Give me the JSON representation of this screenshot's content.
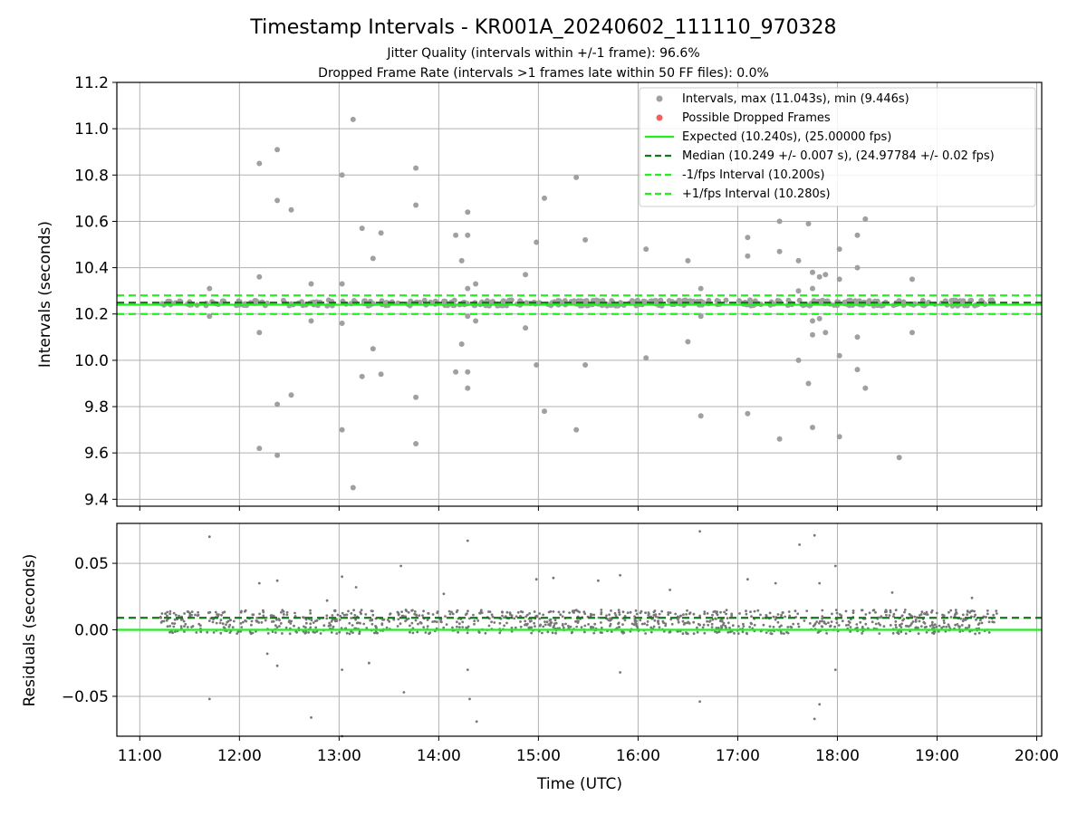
{
  "title": "Timestamp Intervals - KR001A_20240602_111110_970328",
  "subtitle_1": "Jitter Quality (intervals within +/-1 frame): 96.6%",
  "subtitle_2": "Dropped Frame Rate (intervals >1 frames late within 50 FF files): 0.0%",
  "colors": {
    "intervals": "#a0a0a0",
    "residuals": "#777777",
    "dropped": "#f06060",
    "expected": "#22ee22",
    "median": "#117711",
    "fps_bounds": "#22ee22",
    "grid": "#b0b0b0"
  },
  "chart_data": [
    {
      "type": "scatter",
      "panel": "top",
      "ylabel": "Intervals (seconds)",
      "ylim": [
        9.37,
        11.2
      ],
      "yticks": [
        "9.4",
        "9.6",
        "9.8",
        "10.0",
        "10.2",
        "10.4",
        "10.6",
        "10.8",
        "11.0",
        "11.2"
      ],
      "ytick_values": [
        9.4,
        9.6,
        9.8,
        10.0,
        10.2,
        10.4,
        10.6,
        10.8,
        11.0,
        11.2
      ],
      "xlim_hours": [
        10.77,
        20.05
      ],
      "grid": true,
      "legend_position": "top-right",
      "legend": [
        "Intervals, max (11.043s), min (9.446s)",
        "Possible Dropped Frames",
        "Expected (10.240s), (25.00000 fps)",
        "Median (10.249 +/- 0.007 s), (24.97784 +/- 0.02 fps)",
        "-1/fps Interval (10.200s)",
        "+1/fps Interval (10.280s)"
      ],
      "reference_lines": {
        "expected": 10.24,
        "median": 10.249,
        "minus_one_fps": 10.2,
        "plus_one_fps": 10.28
      },
      "time_span_hours": [
        11.2,
        19.6
      ],
      "typical_band": [
        10.235,
        10.26
      ],
      "outliers": [
        [
          11.7,
          10.31
        ],
        [
          11.7,
          10.19
        ],
        [
          12.2,
          10.85
        ],
        [
          12.2,
          10.36
        ],
        [
          12.2,
          10.12
        ],
        [
          12.2,
          9.62
        ],
        [
          12.38,
          10.91
        ],
        [
          12.38,
          10.69
        ],
        [
          12.38,
          9.81
        ],
        [
          12.38,
          9.59
        ],
        [
          12.52,
          10.65
        ],
        [
          12.52,
          9.85
        ],
        [
          12.72,
          10.33
        ],
        [
          12.72,
          10.17
        ],
        [
          13.03,
          10.8
        ],
        [
          13.03,
          10.33
        ],
        [
          13.03,
          10.16
        ],
        [
          13.03,
          9.7
        ],
        [
          13.14,
          11.04
        ],
        [
          13.14,
          9.45
        ],
        [
          13.23,
          10.57
        ],
        [
          13.23,
          9.93
        ],
        [
          13.34,
          10.44
        ],
        [
          13.34,
          10.05
        ],
        [
          13.42,
          10.55
        ],
        [
          13.42,
          9.94
        ],
        [
          13.77,
          10.83
        ],
        [
          13.77,
          10.67
        ],
        [
          13.77,
          9.84
        ],
        [
          13.77,
          9.64
        ],
        [
          14.17,
          10.54
        ],
        [
          14.17,
          9.95
        ],
        [
          14.23,
          10.43
        ],
        [
          14.23,
          10.07
        ],
        [
          14.29,
          10.64
        ],
        [
          14.29,
          10.54
        ],
        [
          14.29,
          10.31
        ],
        [
          14.29,
          10.19
        ],
        [
          14.29,
          9.95
        ],
        [
          14.29,
          9.88
        ],
        [
          14.37,
          10.33
        ],
        [
          14.37,
          10.17
        ],
        [
          14.87,
          10.37
        ],
        [
          14.87,
          10.14
        ],
        [
          14.98,
          10.51
        ],
        [
          14.98,
          9.98
        ],
        [
          15.06,
          10.7
        ],
        [
          15.06,
          9.78
        ],
        [
          15.38,
          10.79
        ],
        [
          15.38,
          9.7
        ],
        [
          15.47,
          10.52
        ],
        [
          15.47,
          9.98
        ],
        [
          16.08,
          10.48
        ],
        [
          16.08,
          10.01
        ],
        [
          16.5,
          10.43
        ],
        [
          16.5,
          10.08
        ],
        [
          16.63,
          10.31
        ],
        [
          16.63,
          10.19
        ],
        [
          16.63,
          9.76
        ],
        [
          17.1,
          10.53
        ],
        [
          17.1,
          10.45
        ],
        [
          17.1,
          9.77
        ],
        [
          17.42,
          10.6
        ],
        [
          17.42,
          10.47
        ],
        [
          17.42,
          9.66
        ],
        [
          17.61,
          10.43
        ],
        [
          17.61,
          10.3
        ],
        [
          17.61,
          10.0
        ],
        [
          17.71,
          10.59
        ],
        [
          17.71,
          9.9
        ],
        [
          17.75,
          10.38
        ],
        [
          17.75,
          10.31
        ],
        [
          17.75,
          10.17
        ],
        [
          17.75,
          10.11
        ],
        [
          17.75,
          9.71
        ],
        [
          17.82,
          10.36
        ],
        [
          17.82,
          10.18
        ],
        [
          17.88,
          10.37
        ],
        [
          17.88,
          10.12
        ],
        [
          18.02,
          10.48
        ],
        [
          18.02,
          10.35
        ],
        [
          18.02,
          10.02
        ],
        [
          18.02,
          9.67
        ],
        [
          18.2,
          10.54
        ],
        [
          18.2,
          10.4
        ],
        [
          18.2,
          10.1
        ],
        [
          18.2,
          9.96
        ],
        [
          18.28,
          10.61
        ],
        [
          18.28,
          9.88
        ],
        [
          18.62,
          9.58
        ],
        [
          18.75,
          10.35
        ],
        [
          18.75,
          10.12
        ]
      ]
    },
    {
      "type": "scatter",
      "panel": "bottom",
      "xlabel": "Time (UTC)",
      "ylabel": "Residuals (seconds)",
      "ylim": [
        -0.08,
        0.08
      ],
      "yticks": [
        "0.05",
        "0.00",
        "−0.05"
      ],
      "ytick_values": [
        0.05,
        0.0,
        -0.05
      ],
      "xticks": [
        "11:00",
        "12:00",
        "13:00",
        "14:00",
        "15:00",
        "16:00",
        "17:00",
        "18:00",
        "19:00",
        "20:00"
      ],
      "xtick_values": [
        11,
        12,
        13,
        14,
        15,
        16,
        17,
        18,
        19,
        20
      ],
      "xlim_hours": [
        10.77,
        20.05
      ],
      "grid": true,
      "reference_lines": {
        "expected": 0.0,
        "median": 0.009
      },
      "time_span_hours": [
        11.2,
        19.6
      ],
      "typical_band": [
        -0.003,
        0.015
      ],
      "outliers": [
        [
          11.7,
          0.07
        ],
        [
          11.7,
          -0.052
        ],
        [
          12.2,
          0.035
        ],
        [
          12.28,
          -0.018
        ],
        [
          12.38,
          0.037
        ],
        [
          12.38,
          -0.027
        ],
        [
          12.72,
          -0.066
        ],
        [
          12.88,
          0.022
        ],
        [
          13.03,
          0.04
        ],
        [
          13.03,
          -0.03
        ],
        [
          13.03,
          -0.08
        ],
        [
          13.17,
          0.032
        ],
        [
          13.3,
          -0.025
        ],
        [
          13.62,
          0.048
        ],
        [
          13.65,
          -0.047
        ],
        [
          14.05,
          0.027
        ],
        [
          14.29,
          0.067
        ],
        [
          14.29,
          -0.03
        ],
        [
          14.31,
          -0.052
        ],
        [
          14.38,
          -0.069
        ],
        [
          14.98,
          0.038
        ],
        [
          15.15,
          0.039
        ],
        [
          15.6,
          0.037
        ],
        [
          15.82,
          0.041
        ],
        [
          15.82,
          -0.032
        ],
        [
          16.32,
          0.03
        ],
        [
          16.62,
          0.074
        ],
        [
          16.62,
          -0.054
        ],
        [
          17.1,
          0.038
        ],
        [
          17.38,
          0.035
        ],
        [
          17.62,
          0.064
        ],
        [
          17.77,
          0.071
        ],
        [
          17.77,
          -0.067
        ],
        [
          17.82,
          -0.056
        ],
        [
          17.82,
          0.035
        ],
        [
          17.98,
          0.048
        ],
        [
          17.98,
          -0.03
        ],
        [
          18.55,
          0.028
        ],
        [
          19.35,
          0.024
        ]
      ]
    }
  ]
}
